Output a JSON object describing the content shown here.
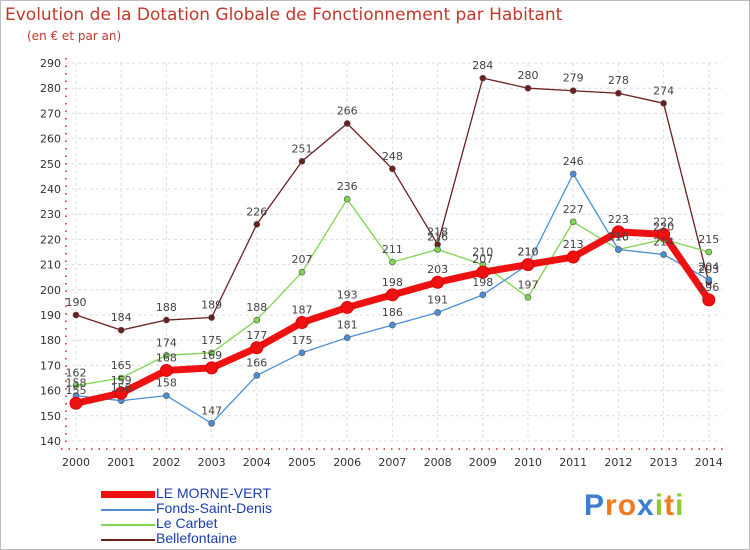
{
  "chart_data": {
    "type": "line",
    "title": "Evolution de la Dotation Globale de Fonctionnement par Habitant",
    "subtitle": "(en € et par an)",
    "categories": [
      "2000",
      "2001",
      "2002",
      "2003",
      "2004",
      "2005",
      "2006",
      "2007",
      "2008",
      "2009",
      "2010",
      "2011",
      "2012",
      "2013",
      "2014"
    ],
    "ylim": [
      140,
      290
    ],
    "yticks": [
      140,
      150,
      160,
      170,
      180,
      190,
      200,
      210,
      220,
      230,
      240,
      250,
      260,
      270,
      280,
      290
    ],
    "grid": true,
    "legend_position": "bottom-left",
    "series": [
      {
        "name": "Bellefontaine",
        "color": "#6b1f1f",
        "values": [
          190,
          184,
          188,
          189,
          226,
          251,
          266,
          248,
          218,
          284,
          280,
          279,
          278,
          274,
          203
        ]
      },
      {
        "name": "Le Carbet",
        "color": "#7fd650",
        "values": [
          162,
          165,
          174,
          175,
          188,
          207,
          236,
          211,
          216,
          210,
          197,
          227,
          216,
          220,
          215
        ]
      },
      {
        "name": "Fonds-Saint-Denis",
        "color": "#4a8fd6",
        "values": [
          158,
          156,
          158,
          147,
          166,
          175,
          181,
          186,
          191,
          198,
          210,
          246,
          216,
          214,
          204
        ]
      },
      {
        "name": "LE MORNE-VERT",
        "color": "#ee1111",
        "values": [
          155,
          159,
          168,
          169,
          177,
          187,
          193,
          198,
          203,
          207,
          210,
          213,
          223,
          222,
          196
        ]
      }
    ],
    "legend_order": [
      "LE MORNE-VERT",
      "Fonds-Saint-Denis",
      "Le Carbet",
      "Bellefontaine"
    ]
  },
  "logo": {
    "letters": [
      {
        "ch": "P",
        "color": "#3a7fd0"
      },
      {
        "ch": "r",
        "color": "#f07a1e"
      },
      {
        "ch": "o",
        "color": "#f07a1e"
      },
      {
        "ch": "x",
        "color": "#3a7fd0"
      },
      {
        "ch": "i",
        "color": "#8ccc2e"
      },
      {
        "ch": "t",
        "color": "#f07a1e"
      },
      {
        "ch": "i",
        "color": "#8ccc2e"
      }
    ]
  }
}
